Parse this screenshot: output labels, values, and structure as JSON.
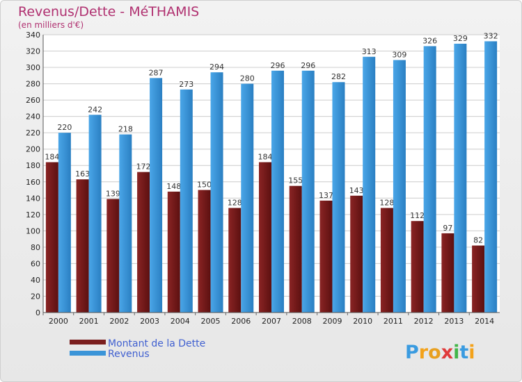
{
  "chart_data": {
    "type": "bar",
    "title": "Revenus/Dette - MéTHAMIS",
    "subtitle": "(en milliers d'€)",
    "categories": [
      "2000",
      "2001",
      "2002",
      "2003",
      "2004",
      "2005",
      "2006",
      "2007",
      "2008",
      "2009",
      "2010",
      "2011",
      "2012",
      "2013",
      "2014"
    ],
    "series": [
      {
        "name": "Montant de la Dette",
        "color": "#7a1e1e",
        "values": [
          184,
          163,
          139,
          172,
          148,
          150,
          128,
          184,
          155,
          137,
          143,
          128,
          112,
          97,
          82
        ]
      },
      {
        "name": "Revenus",
        "color": "#3a94d8",
        "values": [
          220,
          242,
          218,
          287,
          273,
          294,
          280,
          296,
          296,
          282,
          313,
          309,
          326,
          329,
          332
        ]
      }
    ],
    "yticks": [
      0,
      20,
      40,
      60,
      80,
      100,
      120,
      140,
      160,
      180,
      200,
      220,
      240,
      260,
      280,
      300,
      320,
      340
    ],
    "ylim": [
      0,
      340
    ],
    "grid": true,
    "legend_position": "bottom-left"
  },
  "logo": {
    "letters": [
      {
        "char": "P",
        "color": "#3a9be0"
      },
      {
        "char": "r",
        "color": "#f3a21a"
      },
      {
        "char": "o",
        "color": "#e8a020"
      },
      {
        "char": "x",
        "color": "#e03a3a"
      },
      {
        "char": "i",
        "color": "#43b649"
      },
      {
        "char": "t",
        "color": "#3a9be0"
      },
      {
        "char": "i",
        "color": "#f3a21a"
      }
    ]
  }
}
